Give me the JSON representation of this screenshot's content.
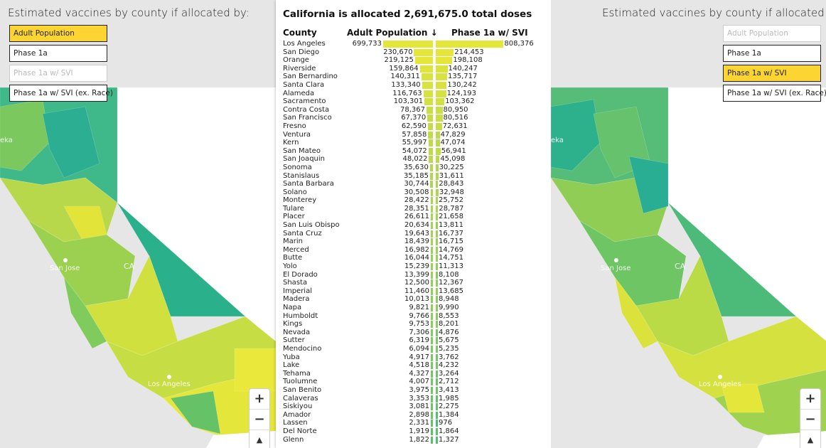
{
  "left_map": {
    "title": "Estimated vaccines by county if allocated by:",
    "options": [
      {
        "label": "Adult Population",
        "state": "active"
      },
      {
        "label": "Phase 1a",
        "state": "normal"
      },
      {
        "label": "Phase 1a w/ SVI",
        "state": "disabled"
      },
      {
        "label": "Phase 1a w/ SVI (ex. Race)",
        "state": "normal"
      }
    ],
    "labels": {
      "city1": "San Jose",
      "state": "CA",
      "city2": "Los Angeles",
      "city3": "eka"
    }
  },
  "right_map": {
    "title": "Estimated vaccines by county if allocated by:",
    "options": [
      {
        "label": "Adult Population",
        "state": "disabled"
      },
      {
        "label": "Phase 1a",
        "state": "normal"
      },
      {
        "label": "Phase 1a w/ SVI",
        "state": "active"
      },
      {
        "label": "Phase 1a w/ SVI (ex. Race)",
        "state": "normal"
      }
    ],
    "labels": {
      "city1": "San Jose",
      "state": "CA",
      "city2": "Los Angeles",
      "city3": "eka"
    }
  },
  "zoom_controls": {
    "zoom_in": "+",
    "zoom_out": "−",
    "reset": "▲"
  },
  "colors": {
    "active_button": "#fdd533",
    "bar_high": "#e4e63a",
    "bar_low": "#4cba78"
  },
  "table": {
    "title": "California is allocated 2,691,675.0 total doses",
    "col_county": "County",
    "col_left": "Adult Population",
    "sort_icon": "↓",
    "col_right": "Phase 1a w/ SVI",
    "rows": [
      [
        "Los Angeles",
        "699,733",
        "808,376"
      ],
      [
        "San Diego",
        "230,670",
        "214,453"
      ],
      [
        "Orange",
        "219,125",
        "198,108"
      ],
      [
        "Riverside",
        "159,864",
        "140,247"
      ],
      [
        "San Bernardino",
        "140,311",
        "135,717"
      ],
      [
        "Santa Clara",
        "133,340",
        "130,242"
      ],
      [
        "Alameda",
        "116,763",
        "124,193"
      ],
      [
        "Sacramento",
        "103,301",
        "103,362"
      ],
      [
        "Contra Costa",
        "78,367",
        "80,950"
      ],
      [
        "San Francisco",
        "67,370",
        "80,516"
      ],
      [
        "Fresno",
        "62,590",
        "72,631"
      ],
      [
        "Ventura",
        "57,858",
        "47,829"
      ],
      [
        "Kern",
        "55,997",
        "47,074"
      ],
      [
        "San Mateo",
        "54,072",
        "56,941"
      ],
      [
        "San Joaquin",
        "48,022",
        "45,098"
      ],
      [
        "Sonoma",
        "35,630",
        "30,225"
      ],
      [
        "Stanislaus",
        "35,185",
        "31,611"
      ],
      [
        "Santa Barbara",
        "30,744",
        "28,843"
      ],
      [
        "Solano",
        "30,508",
        "32,948"
      ],
      [
        "Monterey",
        "28,422",
        "25,752"
      ],
      [
        "Tulare",
        "28,351",
        "28,787"
      ],
      [
        "Placer",
        "26,611",
        "21,658"
      ],
      [
        "San Luis Obispo",
        "20,634",
        "13,811"
      ],
      [
        "Santa Cruz",
        "19,643",
        "16,737"
      ],
      [
        "Marin",
        "18,439",
        "16,715"
      ],
      [
        "Merced",
        "16,982",
        "14,769"
      ],
      [
        "Butte",
        "16,044",
        "14,751"
      ],
      [
        "Yolo",
        "15,239",
        "11,313"
      ],
      [
        "El Dorado",
        "13,399",
        "8,108"
      ],
      [
        "Shasta",
        "12,500",
        "12,367"
      ],
      [
        "Imperial",
        "11,460",
        "13,685"
      ],
      [
        "Madera",
        "10,013",
        "8,948"
      ],
      [
        "Napa",
        "9,821",
        "9,990"
      ],
      [
        "Humboldt",
        "9,766",
        "8,553"
      ],
      [
        "Kings",
        "9,753",
        "8,201"
      ],
      [
        "Nevada",
        "7,306",
        "4,876"
      ],
      [
        "Sutter",
        "6,319",
        "5,675"
      ],
      [
        "Mendocino",
        "6,094",
        "5,235"
      ],
      [
        "Yuba",
        "4,917",
        "3,762"
      ],
      [
        "Lake",
        "4,518",
        "4,232"
      ],
      [
        "Tehama",
        "4,327",
        "3,264"
      ],
      [
        "Tuolumne",
        "4,007",
        "2,712"
      ],
      [
        "San Benito",
        "3,975",
        "3,413"
      ],
      [
        "Calaveras",
        "3,353",
        "1,985"
      ],
      [
        "Siskiyou",
        "3,081",
        "2,275"
      ],
      [
        "Amador",
        "2,898",
        "1,384"
      ],
      [
        "Lassen",
        "2,331",
        "976"
      ],
      [
        "Del Norte",
        "1,919",
        "1,864"
      ],
      [
        "Glenn",
        "1,822",
        "1,327"
      ]
    ]
  }
}
